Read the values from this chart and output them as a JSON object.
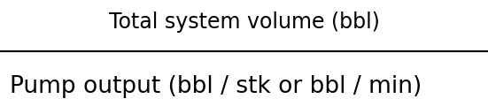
{
  "numerator": "Total system volume (bbl)",
  "denominator": "Pump output (bbl / stk or bbl / min)",
  "line_color": "#000000",
  "text_color": "#000000",
  "background_color": "#ffffff",
  "numerator_fontsize": 17,
  "denominator_fontsize": 19,
  "fig_width": 5.51,
  "fig_height": 1.13,
  "dpi": 100
}
